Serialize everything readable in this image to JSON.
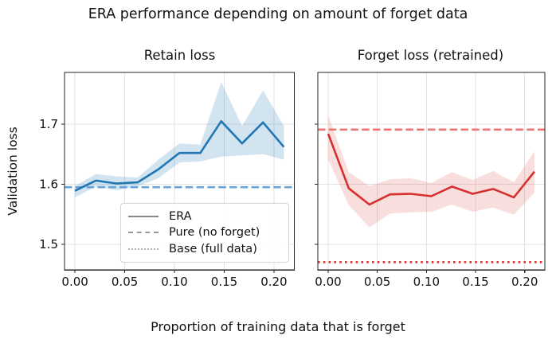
{
  "figure": {
    "suptitle": "ERA performance depending on amount of forget data",
    "xlabel": "Proportion of training data that is forget",
    "ylabel": "Validation loss"
  },
  "legend": {
    "items": [
      {
        "label": "ERA",
        "style": "solid"
      },
      {
        "label": "Pure (no forget)",
        "style": "dashed"
      },
      {
        "label": "Base (full data)",
        "style": "dotted"
      }
    ]
  },
  "chart_data": {
    "type": "line",
    "title": "ERA performance depending on amount of forget data",
    "xlabel": "Proportion of training data that is forget",
    "ylabel": "Validation loss",
    "grid": true,
    "grid_color": "#e2e2e2",
    "legend_position": "lower center of left panel",
    "x": [
      0.0,
      0.021,
      0.042,
      0.063,
      0.084,
      0.105,
      0.126,
      0.147,
      0.168,
      0.189,
      0.21
    ],
    "xlim": [
      -0.0105,
      0.2205
    ],
    "ylim": [
      1.4567,
      1.7863
    ],
    "xticks": {
      "values": [
        0.0,
        0.05,
        0.1,
        0.15,
        0.2
      ],
      "labels": [
        "0.00",
        "0.05",
        "0.10",
        "0.15",
        "0.20"
      ]
    },
    "yticks": {
      "values": [
        1.5,
        1.6,
        1.7
      ],
      "labels": [
        "1.5",
        "1.6",
        "1.7"
      ]
    },
    "panels": [
      {
        "title": "Retain loss",
        "line_color": "#2077b4",
        "band_opacity": 0.2,
        "series_name": "ERA",
        "era_values": [
          1.589,
          1.606,
          1.601,
          1.603,
          1.625,
          1.652,
          1.652,
          1.705,
          1.668,
          1.703,
          1.662
        ],
        "band_upper": [
          1.597,
          1.617,
          1.613,
          1.611,
          1.641,
          1.668,
          1.666,
          1.77,
          1.697,
          1.756,
          1.697
        ],
        "band_lower": [
          1.578,
          1.596,
          1.59,
          1.596,
          1.61,
          1.636,
          1.638,
          1.646,
          1.648,
          1.65,
          1.641
        ],
        "pure_baseline": {
          "name": "Pure (no forget)",
          "value": 1.595,
          "color": "#6aa3d6",
          "style": "dashed"
        },
        "base_baseline": {
          "name": "Base (full data)",
          "value": null,
          "color": "#6aa3d6",
          "style": "dotted"
        }
      },
      {
        "title": "Forget loss (retrained)",
        "line_color": "#d62f2e",
        "band_opacity": 0.16,
        "series_name": "ERA",
        "era_values": [
          1.684,
          1.593,
          1.566,
          1.583,
          1.584,
          1.58,
          1.596,
          1.584,
          1.592,
          1.578,
          1.621
        ],
        "band_upper": [
          1.714,
          1.62,
          1.597,
          1.608,
          1.61,
          1.602,
          1.62,
          1.607,
          1.622,
          1.603,
          1.655
        ],
        "band_lower": [
          1.641,
          1.565,
          1.528,
          1.551,
          1.553,
          1.554,
          1.566,
          1.554,
          1.561,
          1.549,
          1.586
        ],
        "pure_baseline": {
          "name": "Pure (no forget)",
          "value": 1.691,
          "color": "#ea7474",
          "style": "dashed"
        },
        "base_baseline": {
          "name": "Base (full data)",
          "value": 1.47,
          "color": "#e63434",
          "style": "dotted"
        }
      }
    ]
  }
}
